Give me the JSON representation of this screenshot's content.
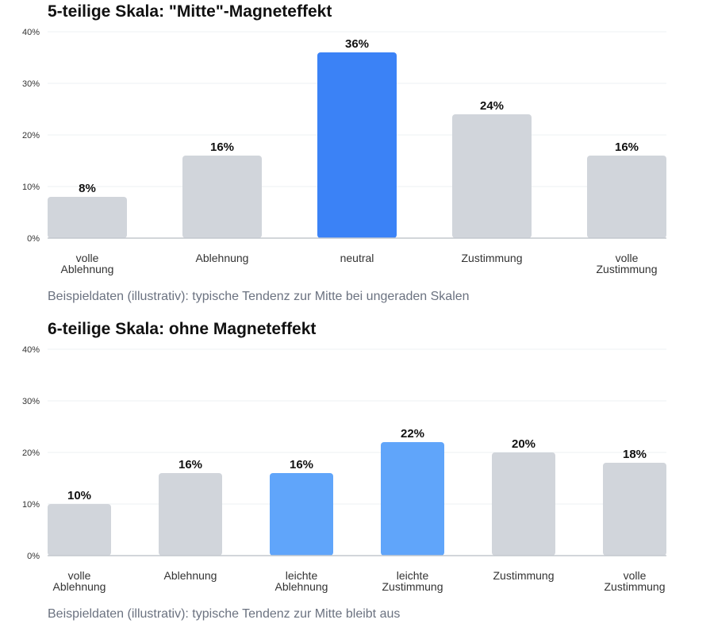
{
  "colors": {
    "neutral_bar": "#d1d5db",
    "highlight_bar_1": "#3b82f6",
    "highlight_bar_2": "#60a5fa",
    "grid": "#eef0f3",
    "axis": "#c4c8ce"
  },
  "chart_data": [
    {
      "type": "bar",
      "title": "5-teilige Skala: \"Mitte\"-Magneteffekt",
      "caption": "Beispieldaten (illustrativ): typische Tendenz zur Mitte bei ungeraden Skalen",
      "categories": [
        [
          "volle",
          "Ablehnung"
        ],
        [
          "Ablehnung"
        ],
        [
          "neutral"
        ],
        [
          "Zustimmung"
        ],
        [
          "volle",
          "Zustimmung"
        ]
      ],
      "values": [
        8,
        16,
        36,
        24,
        16
      ],
      "value_labels": [
        "8%",
        "16%",
        "36%",
        "24%",
        "16%"
      ],
      "highlight": [
        false,
        false,
        true,
        false,
        false
      ],
      "highlight_color": "#3b82f6",
      "ylim": [
        0,
        40
      ],
      "yticks": [
        0,
        10,
        20,
        30,
        40
      ],
      "ytick_labels": [
        "0%",
        "10%",
        "20%",
        "30%",
        "40%"
      ],
      "grid": true
    },
    {
      "type": "bar",
      "title": "6-teilige Skala: ohne Magneteffekt",
      "caption": "Beispieldaten (illustrativ): typische Tendenz zur Mitte bleibt aus",
      "categories": [
        [
          "volle",
          "Ablehnung"
        ],
        [
          "Ablehnung"
        ],
        [
          "leichte",
          "Ablehnung"
        ],
        [
          "leichte",
          "Zustimmung"
        ],
        [
          "Zustimmung"
        ],
        [
          "volle",
          "Zustimmung"
        ]
      ],
      "values": [
        10,
        16,
        16,
        22,
        20,
        18
      ],
      "value_labels": [
        "10%",
        "16%",
        "16%",
        "22%",
        "20%",
        "18%"
      ],
      "highlight": [
        false,
        false,
        true,
        true,
        false,
        false
      ],
      "highlight_color": "#60a5fa",
      "ylim": [
        0,
        40
      ],
      "yticks": [
        0,
        10,
        20,
        30,
        40
      ],
      "ytick_labels": [
        "0%",
        "10%",
        "20%",
        "30%",
        "40%"
      ],
      "grid": true
    }
  ]
}
